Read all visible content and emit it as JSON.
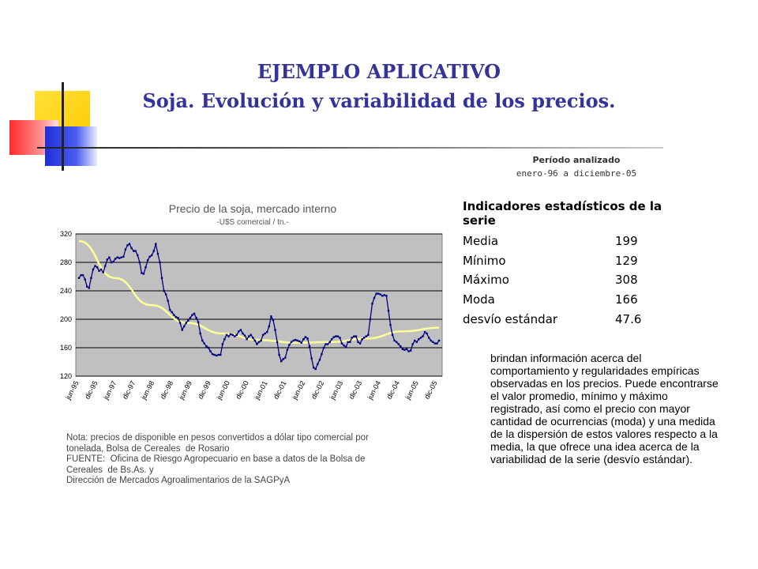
{
  "slide": {
    "title_line1": "EJEMPLO APLICATIVO",
    "title_line2": "Soja. Evolución y variabilidad de los precios."
  },
  "period": {
    "label": "Período analizado",
    "range": "enero-96 a diciembre-05"
  },
  "stats": {
    "heading": "Indicadores estadísticos de la serie",
    "rows": [
      {
        "label": "Media",
        "value": "199"
      },
      {
        "label": "Mínimo",
        "value": "129"
      },
      {
        "label": "Máximo",
        "value": "308"
      },
      {
        "label": "Moda",
        "value": "166"
      },
      {
        "label": "desvío estándar",
        "value": "47.6"
      }
    ]
  },
  "description": "brindan información acerca del comportamiento y regularidades empíricas observadas en los precios. Puede encontrarse el valor promedio, mínimo y máximo registrado, así como el precio con mayor cantidad de ocurrencias (moda) y una medida de la dispersión de estos valores respecto a la media, la que ofrece una idea acerca de la variabilidad de la serie (desvío estándar).",
  "note": {
    "lines": [
      "Nota: precios de disponible en pesos convertidos a dólar tipo comercial por",
      "tonelada, Bolsa de Cereales  de Rosario",
      "FUENTE:  Oficina de Riesgo Agropecuario en base a datos de la Bolsa de",
      "Cereales  de Bs.As. y",
      "Dirección de Mercados Agroalimentarios de la SAGPyA"
    ]
  },
  "colors": {
    "title": "#333399",
    "plot_bg": "#c0c0c0",
    "series": "#000080",
    "trend": "#ffff99"
  },
  "chart_data": {
    "type": "line",
    "title": "Precio de la soja, mercado interno",
    "subtitle": "-U$S comercial / tn.-",
    "xlabel": "",
    "ylabel": "",
    "ylim": [
      120,
      320
    ],
    "yticks": [
      120,
      160,
      200,
      240,
      280,
      320
    ],
    "grid": true,
    "tick_labels": [
      "jun-95",
      "dic-95",
      "jun-97",
      "dic-97",
      "jun-98",
      "dic-98",
      "jun-99",
      "dic-99",
      "jun-00",
      "dic-00",
      "jun-01",
      "dic-01",
      "jun-02",
      "dic-02",
      "jun-03",
      "dic-03",
      "jun-04",
      "dic-04",
      "jun-05",
      "dic-05"
    ],
    "series": [
      {
        "kind": "price",
        "values": [
          258,
          262,
          262,
          256,
          246,
          244,
          258,
          270,
          275,
          273,
          268,
          270,
          266,
          275,
          284,
          287,
          280,
          281,
          285,
          287,
          286,
          287,
          288,
          298,
          304,
          306,
          300,
          296,
          296,
          290,
          280,
          265,
          264,
          273,
          283,
          288,
          290,
          296,
          306,
          292,
          280,
          258,
          240,
          235,
          226,
          213,
          210,
          206,
          203,
          202,
          195,
          185,
          190,
          195,
          198,
          202,
          206,
          208,
          202,
          196,
          180,
          170,
          166,
          162,
          160,
          155,
          151,
          150,
          149,
          150,
          150,
          165,
          172,
          178,
          176,
          179,
          178,
          176,
          178,
          183,
          185,
          180,
          177,
          172,
          176,
          178,
          174,
          170,
          165,
          168,
          170,
          178,
          180,
          182,
          190,
          204,
          199,
          185,
          168,
          150,
          141,
          144,
          146,
          157,
          164,
          168,
          170,
          171,
          170,
          169,
          167,
          172,
          175,
          173,
          162,
          145,
          132,
          130,
          137,
          143,
          151,
          160,
          165,
          165,
          168,
          172,
          175,
          176,
          176,
          174,
          166,
          163,
          161,
          168,
          168,
          174,
          176,
          176,
          168,
          166,
          172,
          174,
          176,
          178,
          200,
          222,
          230,
          236,
          236,
          235,
          233,
          234,
          233,
          212,
          192,
          178,
          170,
          168,
          165,
          162,
          158,
          157,
          158,
          155,
          156,
          165,
          170,
          168,
          172,
          174,
          176,
          182,
          180,
          174,
          170,
          168,
          166,
          166,
          170
        ]
      },
      {
        "kind": "trend",
        "values": [
          310,
          258,
          220,
          195,
          180,
          171,
          167,
          168,
          173,
          183,
          188
        ]
      }
    ]
  }
}
